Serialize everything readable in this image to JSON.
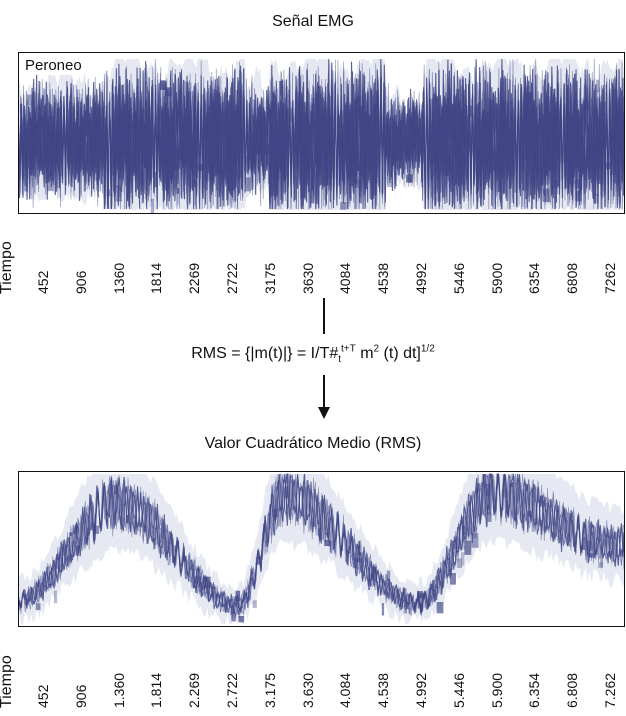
{
  "chart_data": [
    {
      "type": "line",
      "title": "Señal EMG",
      "series": [
        {
          "name": "Peroneo"
        }
      ],
      "xlabel": "Tiempo",
      "x_ticks": [
        "452",
        "906",
        "1360",
        "1814",
        "2269",
        "2722",
        "3175",
        "3630",
        "4084",
        "4538",
        "4992",
        "5446",
        "5900",
        "6354",
        "6808",
        "7262"
      ],
      "bursts": [
        {
          "start": 0,
          "end": 1050,
          "amp": 0.68
        },
        {
          "start": 1050,
          "end": 2800,
          "amp": 0.97
        },
        {
          "start": 2800,
          "end": 3100,
          "amp": 0.55
        },
        {
          "start": 3100,
          "end": 4550,
          "amp": 1.0
        },
        {
          "start": 4550,
          "end": 5000,
          "amp": 0.45
        },
        {
          "start": 5000,
          "end": 7500,
          "amp": 0.98
        }
      ],
      "signal_color": "#3f4685",
      "noise_color": "#cfd4e5"
    },
    {
      "type": "line",
      "title": "Valor Cuadrático Medio (RMS)",
      "xlabel": "Tiempo",
      "x_ticks": [
        "452",
        "906",
        "1.360",
        "1.814",
        "2.269",
        "2.722",
        "3.175",
        "3.630",
        "4.084",
        "4.538",
        "4.992",
        "5.446",
        "5.900",
        "6.354",
        "6.808",
        "7.262"
      ],
      "peaks": [
        {
          "x": 1200,
          "level": 0.88
        },
        {
          "x": 3280,
          "level": 0.94
        },
        {
          "x": 5860,
          "level": 0.96
        }
      ],
      "valleys": [
        {
          "x": 0,
          "level": 0.12
        },
        {
          "x": 2720,
          "level": 0.08
        },
        {
          "x": 4950,
          "level": 0.1
        },
        {
          "x": 7400,
          "level": 0.55
        }
      ],
      "signal_color": "#3f4685",
      "noise_color": "#cfd4e5"
    }
  ],
  "formula": {
    "prefix": "RMS = {|m(t)|} = I/T#",
    "sub": "t",
    "sup": "t+T",
    "middle": " m",
    "middle_sup": "2",
    "suffix": " (t) dt]",
    "suffix_sup": "1/2"
  }
}
